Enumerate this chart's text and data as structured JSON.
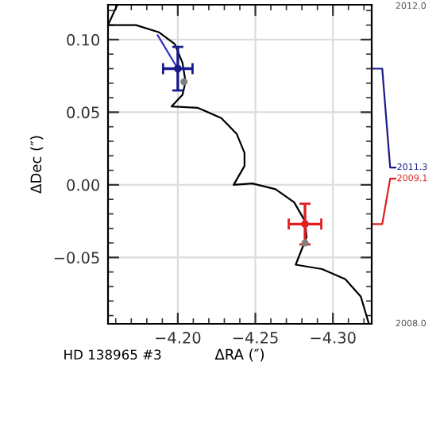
{
  "chart_data": {
    "type": "line",
    "xlabel": "ΔRA (″)",
    "ylabel": "ΔDec (″)",
    "xlim": [
      -4.155,
      -4.325
    ],
    "ylim": [
      -0.0957,
      0.124
    ],
    "xticks": [
      {
        "value": -4.2,
        "label": "−4.20"
      },
      {
        "value": -4.25,
        "label": "−4.25"
      },
      {
        "value": -4.3,
        "label": "−4.30"
      }
    ],
    "yticks": [
      {
        "value": -0.05,
        "label": "−0.05"
      },
      {
        "value": 0.0,
        "label": "0.00"
      },
      {
        "value": 0.05,
        "label": "0.05"
      },
      {
        "value": 0.1,
        "label": "0.10"
      }
    ],
    "grid": true,
    "legend": false,
    "annotations": [
      "2012.0",
      "2008.0",
      "HD 138965 #3"
    ],
    "series": [
      {
        "color": "#000000",
        "x": [
          -4.161,
          -4.155,
          -4.173,
          -4.188,
          -4.198,
          -4.203,
          -4.205,
          -4.203,
          -4.196,
          -4.213,
          -4.228,
          -4.238,
          -4.243,
          -4.243,
          -4.236,
          -4.248,
          -4.263,
          -4.275,
          -4.282,
          -4.283,
          -4.276,
          -4.293,
          -4.308,
          -4.318,
          -4.323
        ],
        "values": [
          0.124,
          0.11,
          0.11,
          0.105,
          0.097,
          0.084,
          0.071,
          0.062,
          0.054,
          0.053,
          0.046,
          0.035,
          0.022,
          0.013,
          0.0,
          0.001,
          -0.003,
          -0.012,
          -0.025,
          -0.036,
          -0.055,
          -0.058,
          -0.065,
          -0.077,
          -0.095
        ]
      },
      {
        "type": "scatter",
        "color": "#808080",
        "marker": "circle",
        "x": [
          -4.204,
          -4.282
        ],
        "values": [
          0.071,
          -0.04
        ]
      },
      {
        "type": "line",
        "color": "#3030c0",
        "x": [
          -4.187,
          -4.2
        ],
        "values": [
          0.103,
          0.08
        ]
      },
      {
        "type": "scatter",
        "name": "2011.3",
        "color": "#1a1a8c",
        "marker": "circle",
        "x": [
          -4.2
        ],
        "values": [
          0.08
        ],
        "errors": [
          0.015
        ],
        "xerrors": [
          0.0095
        ]
      },
      {
        "type": "scatter",
        "name": "2009.1",
        "color": "#e02020",
        "marker": "circle",
        "x": [
          -4.282
        ],
        "values": [
          -0.027
        ],
        "errors": [
          0.014
        ],
        "xerrors": [
          0.0105
        ]
      }
    ]
  }
}
